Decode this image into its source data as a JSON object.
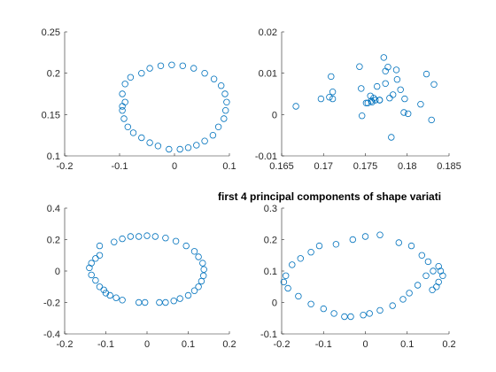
{
  "figure_title": "first 4 principal components of shape variati",
  "colors": {
    "marker": "#0072BD",
    "axis": "#262626",
    "background": "#ffffff"
  },
  "chart_data": [
    {
      "type": "scatter",
      "grid": false,
      "xlim": [
        -0.2,
        0.1
      ],
      "ylim": [
        0.1,
        0.25
      ],
      "xticks": [
        -0.2,
        -0.1,
        0,
        0.1
      ],
      "xtick_labels": [
        "-0.2",
        "-0.1",
        "0",
        "0.1"
      ],
      "yticks": [
        0.1,
        0.15,
        0.2,
        0.25
      ],
      "ytick_labels": [
        "0.1",
        "0.15",
        "0.2",
        "0.25"
      ],
      "x": [
        -0.095,
        -0.09,
        -0.08,
        -0.06,
        -0.045,
        -0.025,
        -0.005,
        0.015,
        0.035,
        0.055,
        0.072,
        0.085,
        0.092,
        0.095,
        0.093,
        0.09,
        0.08,
        0.07,
        0.055,
        0.04,
        0.025,
        0.01,
        -0.01,
        -0.03,
        -0.045,
        -0.06,
        -0.075,
        -0.085,
        -0.092,
        -0.095,
        -0.095,
        -0.09
      ],
      "y": [
        0.175,
        0.187,
        0.195,
        0.2,
        0.206,
        0.209,
        0.21,
        0.209,
        0.206,
        0.2,
        0.193,
        0.185,
        0.175,
        0.165,
        0.155,
        0.145,
        0.135,
        0.125,
        0.118,
        0.113,
        0.11,
        0.108,
        0.108,
        0.112,
        0.116,
        0.122,
        0.128,
        0.135,
        0.145,
        0.155,
        0.16,
        0.165
      ]
    },
    {
      "type": "scatter",
      "grid": false,
      "xlim": [
        0.165,
        0.185
      ],
      "ylim": [
        -0.01,
        0.02
      ],
      "xticks": [
        0.165,
        0.17,
        0.175,
        0.18,
        0.185
      ],
      "xtick_labels": [
        "0.165",
        "0.17",
        "0.175",
        "0.18",
        "0.185"
      ],
      "yticks": [
        -0.01,
        0,
        0.01,
        0.02
      ],
      "ytick_labels": [
        "-0.01",
        "0",
        "0.01",
        "0.02"
      ],
      "x": [
        0.1667,
        0.1697,
        0.1711,
        0.1709,
        0.1711,
        0.1707,
        0.1743,
        0.1745,
        0.1746,
        0.1751,
        0.1753,
        0.1756,
        0.1758,
        0.176,
        0.1762,
        0.1764,
        0.1767,
        0.1772,
        0.1774,
        0.1777,
        0.1779,
        0.1781,
        0.1783,
        0.1787,
        0.1788,
        0.1792,
        0.1796,
        0.1801,
        0.1797,
        0.1816,
        0.1823,
        0.1832,
        0.1829,
        0.1767,
        0.1757,
        0.1774
      ],
      "y": [
        0.002,
        0.0038,
        0.0055,
        0.0092,
        0.0038,
        0.0042,
        0.0116,
        0.0063,
        -0.0003,
        0.0028,
        0.0028,
        0.0045,
        0.003,
        0.004,
        0.0035,
        0.0068,
        0.0035,
        0.0138,
        0.0075,
        0.0115,
        0.004,
        -0.0055,
        0.0048,
        0.0108,
        0.0085,
        0.006,
        0.0005,
        0.0002,
        0.0038,
        0.0025,
        0.0098,
        0.0073,
        -0.0013,
        0.0035,
        0.0033,
        0.0105
      ]
    },
    {
      "type": "scatter",
      "grid": false,
      "xlim": [
        -0.2,
        0.2
      ],
      "ylim": [
        -0.4,
        0.4
      ],
      "xticks": [
        -0.2,
        -0.1,
        0,
        0.1,
        0.2
      ],
      "xtick_labels": [
        "-0.2",
        "-0.1",
        "0",
        "0.1",
        "0.2"
      ],
      "yticks": [
        -0.4,
        -0.2,
        0,
        0.2,
        0.4
      ],
      "ytick_labels": [
        "-0.4",
        "-0.2",
        "0",
        "0.2",
        "0.4"
      ],
      "x": [
        -0.08,
        -0.06,
        -0.04,
        -0.02,
        0,
        0.02,
        0.045,
        0.07,
        0.095,
        0.115,
        0.125,
        0.135,
        0.138,
        0.137,
        0.132,
        0.125,
        0.115,
        0.1,
        0.08,
        0.065,
        0.045,
        0.03,
        -0.005,
        -0.02,
        -0.06,
        -0.075,
        -0.09,
        -0.1,
        -0.105,
        -0.115,
        -0.125,
        -0.135,
        -0.14,
        -0.135,
        -0.125,
        -0.115,
        -0.115
      ],
      "y": [
        0.185,
        0.205,
        0.22,
        0.22,
        0.225,
        0.22,
        0.21,
        0.19,
        0.16,
        0.125,
        0.09,
        0.05,
        0.01,
        -0.03,
        -0.065,
        -0.1,
        -0.125,
        -0.155,
        -0.175,
        -0.19,
        -0.2,
        -0.2,
        -0.2,
        -0.2,
        -0.185,
        -0.17,
        -0.155,
        -0.14,
        -0.12,
        -0.1,
        -0.06,
        -0.025,
        0.02,
        0.05,
        0.08,
        0.1,
        0.16
      ]
    },
    {
      "type": "scatter",
      "grid": false,
      "xlim": [
        -0.2,
        0.2
      ],
      "ylim": [
        -0.1,
        0.3
      ],
      "xticks": [
        -0.2,
        -0.1,
        0,
        0.1,
        0.2
      ],
      "xtick_labels": [
        "-0.2",
        "-0.1",
        "0",
        "0.1",
        "0.2"
      ],
      "yticks": [
        -0.1,
        0,
        0.1,
        0.2,
        0.3
      ],
      "ytick_labels": [
        "-0.1",
        "0",
        "0.1",
        "0.2",
        "0.3"
      ],
      "x": [
        -0.19,
        -0.195,
        -0.185,
        -0.16,
        -0.13,
        -0.1,
        -0.075,
        -0.05,
        -0.035,
        -0.005,
        0.01,
        0.035,
        0.065,
        0.09,
        0.105,
        0.125,
        0.145,
        0.162,
        0.175,
        0.18,
        0.185,
        0.175,
        0.17,
        0.16,
        0.15,
        0.135,
        0.11,
        0.08,
        0.035,
        0,
        -0.03,
        -0.07,
        -0.11,
        -0.13,
        -0.155,
        -0.175
      ],
      "y": [
        0.085,
        0.065,
        0.045,
        0.02,
        -0.005,
        -0.02,
        -0.035,
        -0.045,
        -0.045,
        -0.04,
        -0.035,
        -0.025,
        -0.01,
        0.01,
        0.03,
        0.055,
        0.085,
        0.1,
        0.115,
        0.1,
        0.085,
        0.065,
        0.05,
        0.04,
        0.13,
        0.15,
        0.18,
        0.19,
        0.215,
        0.21,
        0.2,
        0.185,
        0.18,
        0.16,
        0.14,
        0.12
      ]
    }
  ]
}
